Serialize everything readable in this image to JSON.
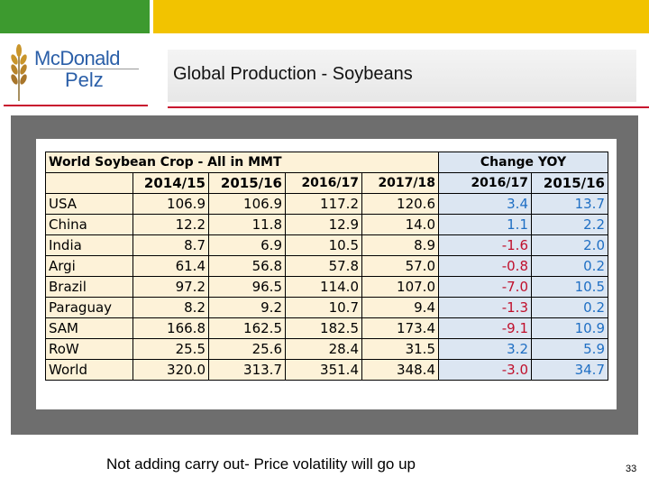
{
  "header": {
    "brand_line1": "McDonald",
    "brand_line2": "Pelz",
    "slide_title": "Global Production - Soybeans"
  },
  "table": {
    "title": "World Soybean Crop - All in MMT",
    "change_header": "Change YOY",
    "year_headers": [
      "2014/15",
      "2015/16",
      "2016/17",
      "2017/18"
    ],
    "change_year_headers": [
      "2016/17",
      "2015/16"
    ],
    "rows": [
      {
        "label": "USA",
        "v": [
          "106.9",
          "106.9",
          "117.2",
          "120.6"
        ],
        "c": [
          "3.4",
          "13.7"
        ]
      },
      {
        "label": "China",
        "v": [
          "12.2",
          "11.8",
          "12.9",
          "14.0"
        ],
        "c": [
          "1.1",
          "2.2"
        ]
      },
      {
        "label": "India",
        "v": [
          "8.7",
          "6.9",
          "10.5",
          "8.9"
        ],
        "c": [
          "-1.6",
          "2.0"
        ]
      },
      {
        "label": "Argi",
        "v": [
          "61.4",
          "56.8",
          "57.8",
          "57.0"
        ],
        "c": [
          "-0.8",
          "0.2"
        ]
      },
      {
        "label": "Brazil",
        "v": [
          "97.2",
          "96.5",
          "114.0",
          "107.0"
        ],
        "c": [
          "-7.0",
          "10.5"
        ]
      },
      {
        "label": "Paraguay",
        "v": [
          "8.2",
          "9.2",
          "10.7",
          "9.4"
        ],
        "c": [
          "-1.3",
          "0.2"
        ]
      },
      {
        "label": "SAM",
        "v": [
          "166.8",
          "162.5",
          "182.5",
          "173.4"
        ],
        "c": [
          "-9.1",
          "10.9"
        ]
      },
      {
        "label": "RoW",
        "v": [
          "25.5",
          "25.6",
          "28.4",
          "31.5"
        ],
        "c": [
          "3.2",
          "5.9"
        ]
      },
      {
        "label": "World",
        "v": [
          "320.0",
          "313.7",
          "351.4",
          "348.4"
        ],
        "c": [
          "-3.0",
          "34.7"
        ]
      }
    ]
  },
  "footer": {
    "note": "Not adding carry out- Price volatility will go up",
    "page_number": "33"
  },
  "colors": {
    "green_bar": "#3d9a2f",
    "yellow_bar": "#f2c300",
    "accent_red": "#c8102e",
    "positive": "#1f6fc4",
    "negative": "#c0102c"
  },
  "icons": [
    "wheat-logo-icon"
  ]
}
